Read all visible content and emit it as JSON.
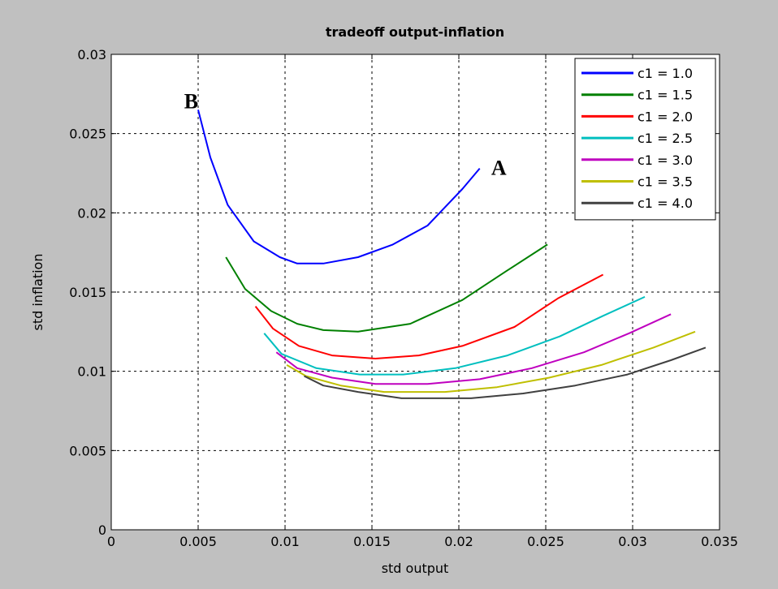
{
  "chart_data": {
    "type": "line",
    "title": "tradeoff output-inflation",
    "xlabel": "std output",
    "ylabel": "std inflation",
    "xlim": [
      0,
      0.035
    ],
    "ylim": [
      0,
      0.03
    ],
    "xticks": [
      0,
      0.005,
      0.01,
      0.015,
      0.02,
      0.025,
      0.03,
      0.035
    ],
    "xtick_labels": [
      "0",
      "0.005",
      "0.01",
      "0.015",
      "0.02",
      "0.025",
      "0.03",
      "0.035"
    ],
    "yticks": [
      0,
      0.005,
      0.01,
      0.015,
      0.02,
      0.025,
      0.03
    ],
    "ytick_labels": [
      "0",
      "0.005",
      "0.01",
      "0.015",
      "0.02",
      "0.025",
      "0.03"
    ],
    "grid": true,
    "legend_position": "top-right",
    "background": "#c0c0c0",
    "plot_background": "#ffffff",
    "series": [
      {
        "name": "c1 = 1.0",
        "color": "#0000ff",
        "x": [
          0.005,
          0.0057,
          0.0067,
          0.0082,
          0.0097,
          0.0107,
          0.0122,
          0.0142,
          0.0162,
          0.0182,
          0.0202,
          0.0212
        ],
        "y": [
          0.0265,
          0.0235,
          0.0205,
          0.0182,
          0.0172,
          0.0168,
          0.0168,
          0.0172,
          0.018,
          0.0192,
          0.0215,
          0.0228
        ]
      },
      {
        "name": "c1 = 1.5",
        "color": "#008000",
        "x": [
          0.0066,
          0.0077,
          0.0092,
          0.0107,
          0.0122,
          0.0142,
          0.0172,
          0.0202,
          0.0227,
          0.0251
        ],
        "y": [
          0.0172,
          0.0152,
          0.0138,
          0.013,
          0.0126,
          0.0125,
          0.013,
          0.0145,
          0.0163,
          0.018
        ]
      },
      {
        "name": "c1 = 2.0",
        "color": "#ff0000",
        "x": [
          0.0083,
          0.0093,
          0.0108,
          0.0127,
          0.0152,
          0.0177,
          0.0202,
          0.0232,
          0.0257,
          0.0283
        ],
        "y": [
          0.0141,
          0.0127,
          0.0116,
          0.011,
          0.0108,
          0.011,
          0.0116,
          0.0128,
          0.0146,
          0.0161
        ]
      },
      {
        "name": "c1 = 2.5",
        "color": "#00bfbf",
        "x": [
          0.0088,
          0.0098,
          0.0118,
          0.0143,
          0.0168,
          0.0198,
          0.0228,
          0.0258,
          0.0283,
          0.0307
        ],
        "y": [
          0.0124,
          0.0111,
          0.0102,
          0.0098,
          0.0098,
          0.0102,
          0.011,
          0.0122,
          0.0135,
          0.0147
        ]
      },
      {
        "name": "c1 = 3.0",
        "color": "#bf00bf",
        "x": [
          0.0095,
          0.0107,
          0.0127,
          0.0152,
          0.0182,
          0.0212,
          0.0242,
          0.0272,
          0.0298,
          0.0322
        ],
        "y": [
          0.0112,
          0.0102,
          0.0096,
          0.0092,
          0.0092,
          0.0095,
          0.0102,
          0.0112,
          0.0124,
          0.0136
        ]
      },
      {
        "name": "c1 = 3.5",
        "color": "#bfbf00",
        "x": [
          0.0101,
          0.0112,
          0.0132,
          0.0157,
          0.0192,
          0.0222,
          0.0252,
          0.0282,
          0.0312,
          0.0336
        ],
        "y": [
          0.0104,
          0.0097,
          0.0091,
          0.0087,
          0.0087,
          0.009,
          0.0096,
          0.0104,
          0.0115,
          0.0125
        ]
      },
      {
        "name": "c1 = 4.0",
        "color": "#404040",
        "x": [
          0.0111,
          0.0122,
          0.0142,
          0.0167,
          0.0207,
          0.0237,
          0.0267,
          0.0297,
          0.0322,
          0.0342
        ],
        "y": [
          0.0097,
          0.0091,
          0.0087,
          0.0083,
          0.0083,
          0.0086,
          0.0091,
          0.0098,
          0.0107,
          0.0115
        ]
      }
    ],
    "annotations": [
      {
        "text": "B",
        "x": 0.0046,
        "y": 0.0265
      },
      {
        "text": "A",
        "x": 0.0223,
        "y": 0.0223
      }
    ]
  }
}
